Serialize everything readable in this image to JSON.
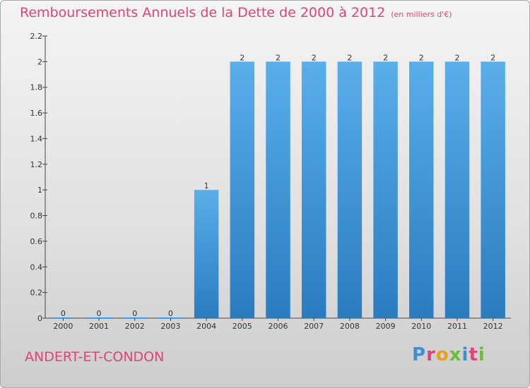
{
  "header": {
    "title": "Remboursements Annuels de la Dette de 2000 à 2012",
    "subtitle": "(en milliers d'€)"
  },
  "footer": {
    "place": "ANDERT-ET-CONDON",
    "logo_text": "Proxiti"
  },
  "colors": {
    "title": "#e0437a",
    "bar_top": "#5aaeea",
    "bar_bottom": "#2a7cbf",
    "logo": [
      "#3a8fd6",
      "#e0437a",
      "#e8a020",
      "#6abf3a",
      "#3a8fd6",
      "#e0437a",
      "#6abf3a"
    ]
  },
  "chart_data": {
    "type": "bar",
    "title": "Remboursements Annuels de la Dette de 2000 à 2012",
    "categories": [
      "2000",
      "2001",
      "2002",
      "2003",
      "2004",
      "2005",
      "2006",
      "2007",
      "2008",
      "2009",
      "2010",
      "2011",
      "2012"
    ],
    "values": [
      0,
      0,
      0,
      0,
      1,
      2,
      2,
      2,
      2,
      2,
      2,
      2,
      2
    ],
    "data_labels": [
      "0",
      "0",
      "0",
      "0",
      "1",
      "2",
      "2",
      "2",
      "2",
      "2",
      "2",
      "2",
      "2"
    ],
    "yticks": [
      0,
      0.2,
      0.4,
      0.6,
      0.8,
      1,
      1.2,
      1.4,
      1.6,
      1.8,
      2,
      2.2
    ],
    "ytick_labels": [
      "0",
      "0.2",
      "0.4",
      "0.6",
      "0.8",
      "1",
      "1.2",
      "1.4",
      "1.6",
      "1.8",
      "2",
      "2.2"
    ],
    "ylim": [
      0,
      2.2
    ],
    "xlabel": "",
    "ylabel": "",
    "grid": false,
    "legend": "none"
  }
}
